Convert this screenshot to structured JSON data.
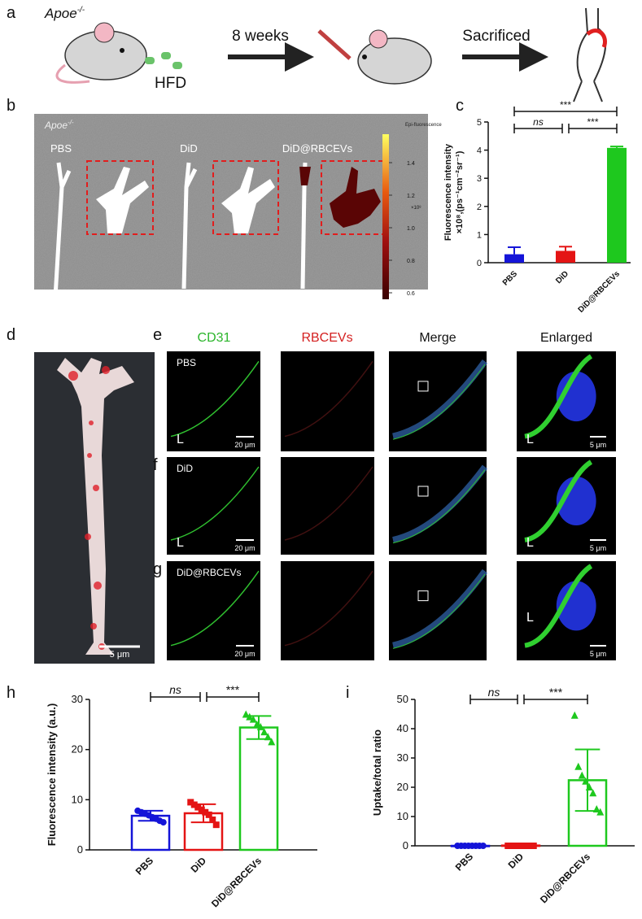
{
  "panel_labels": {
    "a": "a",
    "b": "b",
    "c": "c",
    "d": "d",
    "e": "e",
    "f": "f",
    "g": "g",
    "h": "h",
    "i": "i"
  },
  "panel_a": {
    "strain": "Apoe",
    "strain_sup": "-/-",
    "diet": "HFD",
    "step1": "8 weeks",
    "step2": "Sacrificed"
  },
  "panel_b": {
    "strain": "Apoe",
    "strain_sup": "-/-",
    "groups": [
      "PBS",
      "DiD",
      "DiD@RBCEVs"
    ],
    "colorbar": {
      "title": "Epi-fluorescence",
      "multiplier": "×10⁸",
      "lim": [
        0.56,
        1.575
      ],
      "ticks": [
        0.6,
        0.8,
        {
          "value": 1,
          "label": "1.0"
        },
        1.2,
        1.4
      ]
    }
  },
  "panel_d": {
    "scale": "5 μm"
  },
  "panel_efg": {
    "columns": [
      "CD31",
      "RBCEVs",
      "Merge",
      "Enlarged"
    ],
    "rows": [
      "PBS",
      "DiD",
      "DiD@RBCEVs"
    ],
    "scale_main": "20 μm",
    "scale_enlarged": "5 μm",
    "lumen": "L"
  },
  "chart_data": [
    {
      "type": "bar",
      "filled": true,
      "categories": [
        "PBS",
        "DiD",
        "DiD@RBCEVs"
      ],
      "values": [
        0.3,
        0.42,
        4.08
      ],
      "errors": [
        0.25,
        0.15,
        0.05
      ],
      "colors": [
        "#1414d8",
        "#e41414",
        "#1ec81e"
      ],
      "ylabel": [
        "Fluorescence intensity",
        "×10⁸,(ps⁻¹cm⁻²sr⁻¹)"
      ],
      "ylim": [
        0,
        5
      ],
      "yticks": [
        0,
        1,
        2,
        3,
        4,
        5
      ],
      "significance": [
        "***",
        "ns",
        "***"
      ]
    },
    {
      "type": "bar",
      "filled": false,
      "categories": [
        "PBS",
        "DiD",
        "DiD@RBCEVs"
      ],
      "values": [
        6.8,
        7.3,
        24.4
      ],
      "errors": [
        1.0,
        1.8,
        2.3
      ],
      "colors": [
        "#1414d8",
        "#e41414",
        "#1ec81e"
      ],
      "ylabel": "Fluorescence intensity (a.u.)",
      "ylim": [
        0,
        30
      ],
      "yticks": [
        0,
        10,
        20,
        30
      ],
      "points": [
        [
          7.8,
          7.5,
          7.2,
          6.9,
          6.5,
          6.2,
          5.8,
          5.5
        ],
        [
          9.5,
          9.0,
          8.5,
          8.0,
          7.5,
          7.0,
          6.0,
          5.0
        ],
        [
          27,
          26.5,
          26,
          25,
          24.5,
          23.5,
          22.5,
          21.5
        ]
      ],
      "significance": [
        "ns",
        "***"
      ]
    },
    {
      "type": "bar",
      "filled": false,
      "categories": [
        "PBS",
        "DiD",
        "DiD@RBCEVs"
      ],
      "values": [
        0,
        0.1,
        22.4
      ],
      "errors": [
        0,
        0,
        10.5
      ],
      "colors": [
        "#1414d8",
        "#e41414",
        "#1ec81e"
      ],
      "ylabel": "Uptake/total ratio",
      "ylim": [
        0,
        50
      ],
      "yticks": [
        0,
        10,
        20,
        30,
        40,
        50
      ],
      "points": [
        [
          0,
          0,
          0,
          0,
          0,
          0,
          0,
          0
        ],
        [
          0,
          0,
          0,
          0,
          0,
          0,
          0,
          0
        ],
        [
          44.5,
          27,
          24,
          22,
          20,
          18,
          12.5,
          11.5
        ]
      ],
      "significance": [
        "ns",
        "***"
      ]
    }
  ]
}
